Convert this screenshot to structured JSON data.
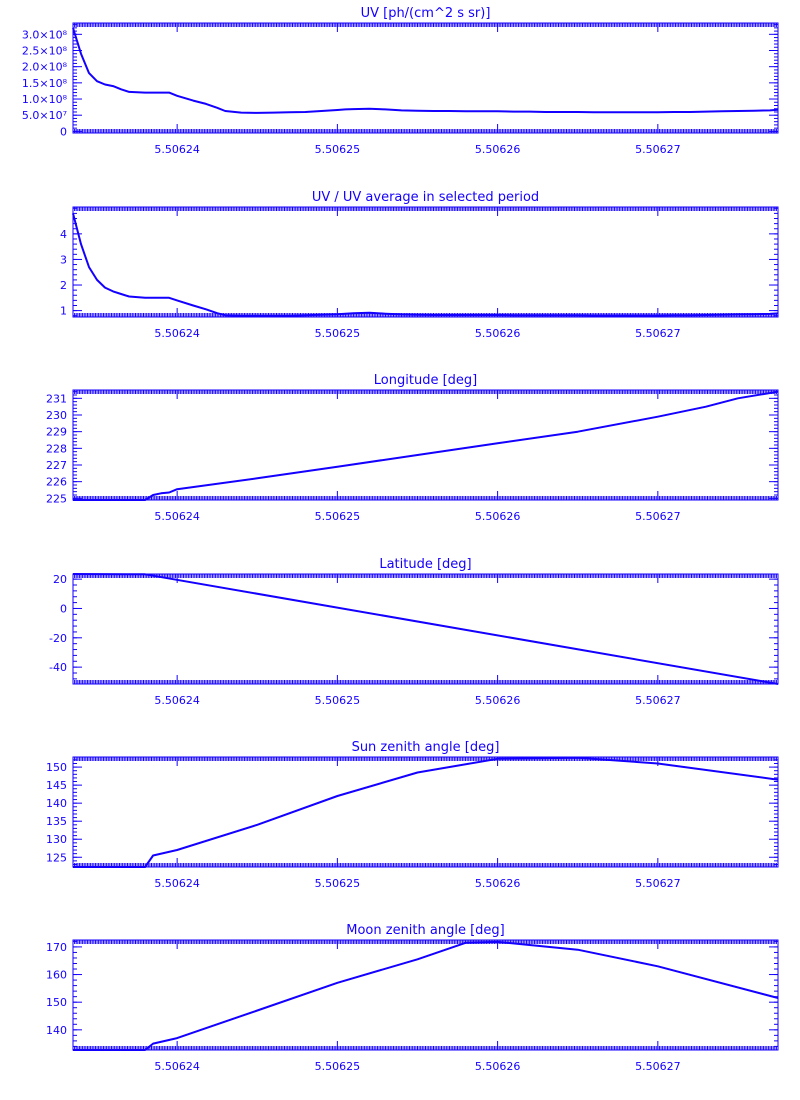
{
  "colors": {
    "ink": "#1400ff",
    "background": "#ffffff"
  },
  "chart_data": [
    {
      "type": "line",
      "title": "UV [ph/(cm^2 s sr)]",
      "xlim": [
        5.5062335,
        5.5062775
      ],
      "ylim": [
        -5000000,
        335000000
      ],
      "xticks": [
        5.50624,
        5.50625,
        5.50626,
        5.50627
      ],
      "xtick_labels": [
        "5.50624",
        "5.50625",
        "5.50626",
        "5.50627"
      ],
      "yticks": [
        0,
        50000000,
        100000000,
        150000000,
        200000000,
        250000000,
        300000000
      ],
      "ytick_labels": [
        "0",
        "5.0×10⁷",
        "1.0×10⁸",
        "1.5×10⁸",
        "2.0×10⁸",
        "2.5×10⁸",
        "3.0×10⁸"
      ],
      "series": [
        {
          "x": [
            5.5062335,
            5.506234,
            5.5062345,
            5.506235,
            5.5062355,
            5.506236,
            5.5062365,
            5.506237,
            5.506238,
            5.506239,
            5.5062395,
            5.50624,
            5.506241,
            5.5062418,
            5.5062425,
            5.506243,
            5.506244,
            5.506245,
            5.506246,
            5.506247,
            5.506248,
            5.506249,
            5.50625,
            5.5062505,
            5.506251,
            5.506252,
            5.506253,
            5.506254,
            5.506255,
            5.506256,
            5.506257,
            5.506258,
            5.506259,
            5.50626,
            5.506261,
            5.506262,
            5.506263,
            5.506264,
            5.506265,
            5.506266,
            5.506267,
            5.506268,
            5.506269,
            5.50627,
            5.506271,
            5.506272,
            5.506273,
            5.506274,
            5.506275,
            5.506276,
            5.506277,
            5.5062775
          ],
          "y": [
            320000000,
            240000000,
            180000000,
            155000000,
            145000000,
            140000000,
            130000000,
            122000000,
            120000000,
            120000000,
            120000000,
            110000000,
            95000000,
            85000000,
            73000000,
            63000000,
            58000000,
            57000000,
            58000000,
            59000000,
            60000000,
            63000000,
            66000000,
            68000000,
            69000000,
            70000000,
            68000000,
            65000000,
            64000000,
            63000000,
            63000000,
            62000000,
            62000000,
            62000000,
            61000000,
            61000000,
            60000000,
            60000000,
            60000000,
            59000000,
            59000000,
            59000000,
            59000000,
            59000000,
            60000000,
            60000000,
            61000000,
            62000000,
            63000000,
            64000000,
            65000000,
            67000000
          ]
        }
      ]
    },
    {
      "type": "line",
      "title": "UV / UV average in selected period",
      "xlim": [
        5.5062335,
        5.5062775
      ],
      "ylim": [
        0.75,
        5.05
      ],
      "xticks": [
        5.50624,
        5.50625,
        5.50626,
        5.50627
      ],
      "xtick_labels": [
        "5.50624",
        "5.50625",
        "5.50626",
        "5.50627"
      ],
      "yticks": [
        1,
        2,
        3,
        4
      ],
      "ytick_labels": [
        "1",
        "2",
        "3",
        "4"
      ],
      "series": [
        {
          "x": [
            5.5062335,
            5.506234,
            5.5062345,
            5.506235,
            5.5062355,
            5.506236,
            5.5062365,
            5.506237,
            5.506238,
            5.506239,
            5.5062395,
            5.50624,
            5.506241,
            5.5062418,
            5.5062425,
            5.506243,
            5.506244,
            5.506245,
            5.506246,
            5.506247,
            5.506248,
            5.506249,
            5.50625,
            5.5062505,
            5.506251,
            5.506252,
            5.506253,
            5.506254,
            5.506255,
            5.506256,
            5.506257,
            5.506258,
            5.506259,
            5.50626,
            5.506261,
            5.506262,
            5.506263,
            5.506264,
            5.506265,
            5.506266,
            5.506267,
            5.506268,
            5.506269,
            5.50627,
            5.506271,
            5.506272,
            5.506273,
            5.506274,
            5.506275,
            5.506276,
            5.506277,
            5.5062775
          ],
          "y": [
            4.8,
            3.6,
            2.7,
            2.2,
            1.9,
            1.75,
            1.65,
            1.55,
            1.5,
            1.5,
            1.5,
            1.4,
            1.2,
            1.05,
            0.9,
            0.82,
            0.8,
            0.8,
            0.8,
            0.8,
            0.82,
            0.84,
            0.86,
            0.88,
            0.9,
            0.92,
            0.88,
            0.85,
            0.84,
            0.83,
            0.83,
            0.83,
            0.83,
            0.83,
            0.82,
            0.82,
            0.82,
            0.82,
            0.82,
            0.81,
            0.81,
            0.81,
            0.81,
            0.81,
            0.82,
            0.82,
            0.83,
            0.84,
            0.85,
            0.86,
            0.87,
            0.89
          ]
        }
      ]
    },
    {
      "type": "line",
      "title": "Longitude [deg]",
      "xlim": [
        5.5062335,
        5.5062775
      ],
      "ylim": [
        224.9,
        231.5
      ],
      "xticks": [
        5.50624,
        5.50625,
        5.50626,
        5.50627
      ],
      "xtick_labels": [
        "5.50624",
        "5.50625",
        "5.50626",
        "5.50627"
      ],
      "yticks": [
        225,
        226,
        227,
        228,
        229,
        230,
        231
      ],
      "ytick_labels": [
        "225",
        "226",
        "227",
        "228",
        "229",
        "230",
        "231"
      ],
      "series": [
        {
          "x": [
            5.5062335,
            5.506238,
            5.5062385,
            5.506239,
            5.5062395,
            5.50624,
            5.506245,
            5.50625,
            5.506255,
            5.50626,
            5.506265,
            5.50627,
            5.506273,
            5.506275,
            5.5062775
          ],
          "y": [
            224.9,
            224.9,
            225.2,
            225.3,
            225.35,
            225.55,
            226.2,
            226.9,
            227.6,
            228.3,
            229.0,
            229.9,
            230.5,
            231.0,
            231.4
          ]
        }
      ]
    },
    {
      "type": "line",
      "title": "Latitude [deg]",
      "xlim": [
        5.5062335,
        5.5062775
      ],
      "ylim": [
        -51.5,
        23.5
      ],
      "xticks": [
        5.50624,
        5.50625,
        5.50626,
        5.50627
      ],
      "xtick_labels": [
        "5.50624",
        "5.50625",
        "5.50626",
        "5.50627"
      ],
      "yticks": [
        -40,
        -20,
        0,
        20
      ],
      "ytick_labels": [
        "-40",
        "-20",
        "0",
        "20"
      ],
      "series": [
        {
          "x": [
            5.5062335,
            5.506238,
            5.5062775
          ],
          "y": [
            23.5,
            23.3,
            -51.5
          ]
        }
      ]
    },
    {
      "type": "line",
      "title": "Sun zenith angle [deg]",
      "xlim": [
        5.5062335,
        5.5062775
      ],
      "ylim": [
        122.3,
        152.8
      ],
      "xticks": [
        5.50624,
        5.50625,
        5.50626,
        5.50627
      ],
      "xtick_labels": [
        "5.50624",
        "5.50625",
        "5.50626",
        "5.50627"
      ],
      "yticks": [
        125,
        130,
        135,
        140,
        145,
        150
      ],
      "ytick_labels": [
        "125",
        "130",
        "135",
        "140",
        "145",
        "150"
      ],
      "series": [
        {
          "x": [
            5.5062335,
            5.506238,
            5.5062385,
            5.50624,
            5.506245,
            5.50625,
            5.506255,
            5.50626,
            5.506265,
            5.50627,
            5.5062775
          ],
          "y": [
            122.3,
            122.3,
            125.5,
            127.0,
            134.0,
            142.0,
            148.5,
            152.3,
            152.6,
            151.0,
            146.5
          ]
        }
      ]
    },
    {
      "type": "line",
      "title": "Moon zenith angle [deg]",
      "xlim": [
        5.5062335,
        5.5062775
      ],
      "ylim": [
        132.7,
        172.5
      ],
      "xticks": [
        5.50624,
        5.50625,
        5.50626,
        5.50627
      ],
      "xtick_labels": [
        "5.50624",
        "5.50625",
        "5.50626",
        "5.50627"
      ],
      "yticks": [
        140,
        150,
        160,
        170
      ],
      "ytick_labels": [
        "140",
        "150",
        "160",
        "170"
      ],
      "series": [
        {
          "x": [
            5.5062335,
            5.506238,
            5.5062385,
            5.50624,
            5.506245,
            5.50625,
            5.506255,
            5.506258,
            5.50626,
            5.506265,
            5.50627,
            5.5062775
          ],
          "y": [
            132.7,
            132.7,
            135.0,
            137.0,
            147.0,
            157.0,
            165.5,
            171.5,
            171.8,
            169.0,
            163.0,
            151.5
          ]
        }
      ]
    }
  ]
}
